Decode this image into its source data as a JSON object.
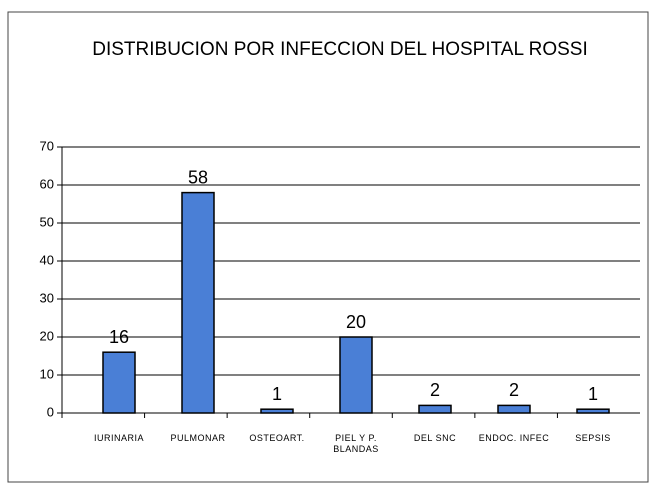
{
  "chart_data": {
    "type": "bar",
    "title": "DISTRIBUCION POR INFECCION DEL HOSPITAL ROSSI",
    "categories": [
      "IURINARIA",
      "PULMONAR",
      "OSTEOART.",
      "PIEL Y P. BLANDAS",
      "DEL SNC",
      "ENDOC. INFEC",
      "SEPSIS"
    ],
    "values": [
      16,
      58,
      1,
      20,
      2,
      2,
      1
    ],
    "color": "#4a7fd6",
    "ylim": [
      0,
      70
    ],
    "yticks": [
      0,
      10,
      20,
      30,
      40,
      50,
      60,
      70
    ],
    "grid": true
  }
}
